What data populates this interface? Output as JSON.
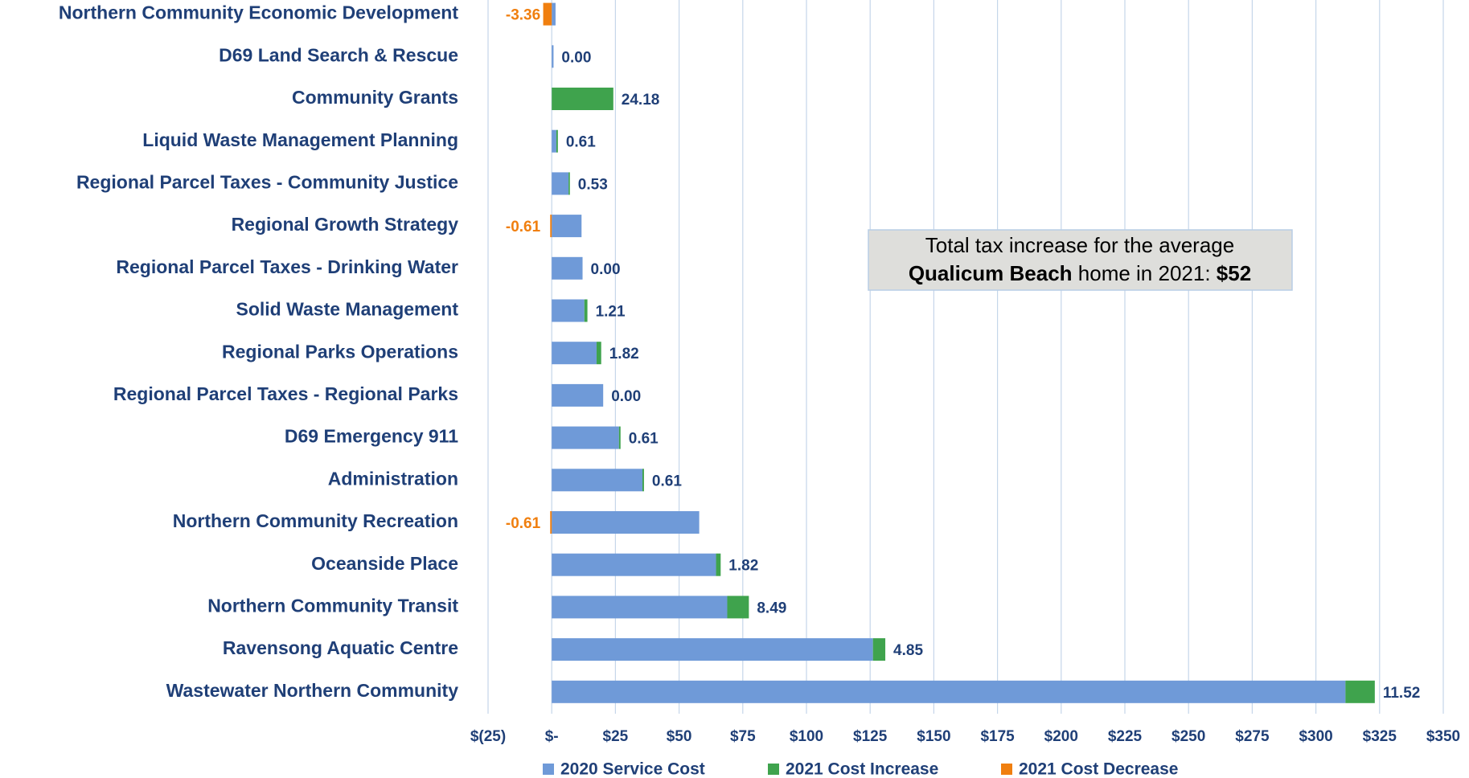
{
  "chart_data": {
    "type": "stacked-barh",
    "categories": [
      "Northern Community Economic Development",
      "D69 Land Search & Rescue",
      "Community Grants",
      "Liquid Waste Management Planning",
      "Regional Parcel Taxes - Community Justice",
      "Regional Growth Strategy",
      "Regional Parcel Taxes - Drinking Water",
      "Solid Waste Management",
      "Regional Parks Operations",
      "Regional Parcel Taxes - Regional Parks",
      "D69 Emergency 911",
      "Administration",
      "Northern Community Recreation",
      "Oceanside Place",
      "Northern Community Transit",
      "Ravensong Aquatic Centre",
      "Wastewater Northern Community"
    ],
    "series": [
      {
        "name": "2020 Service Cost",
        "color": "#6f9ad8",
        "values": [
          1.5,
          0.7,
          0,
          1.8,
          6.6,
          11.7,
          12.1,
          12.8,
          17.6,
          20.2,
          26.4,
          35.6,
          57.9,
          64.5,
          68.9,
          126.1,
          311.6
        ]
      },
      {
        "name": "2021 Cost Increase",
        "color": "#3fa34d",
        "values": [
          null,
          0,
          24.18,
          0.61,
          0.53,
          null,
          0,
          1.21,
          1.82,
          0,
          0.61,
          0.61,
          null,
          1.82,
          8.49,
          4.85,
          11.52
        ],
        "value_labels": [
          null,
          "0.00",
          "24.18",
          "0.61",
          "0.53",
          null,
          "0.00",
          "1.21",
          "1.82",
          "0.00",
          "0.61",
          "0.61",
          null,
          "1.82",
          "8.49",
          "4.85",
          "11.52"
        ]
      },
      {
        "name": "2021 Cost Decrease",
        "color": "#f07f0f",
        "values": [
          -3.36,
          null,
          null,
          null,
          null,
          -0.61,
          null,
          null,
          null,
          null,
          null,
          null,
          -0.61,
          null,
          null,
          null,
          null
        ]
      }
    ],
    "xlim": [
      -25,
      350
    ],
    "xticks": [
      {
        "value": -25,
        "label": "$(25)"
      },
      {
        "value": 0,
        "label": "$-"
      },
      {
        "value": 25,
        "label": "$25"
      },
      {
        "value": 50,
        "label": "$50"
      },
      {
        "value": 75,
        "label": "$75"
      },
      {
        "value": 100,
        "label": "$100"
      },
      {
        "value": 125,
        "label": "$125"
      },
      {
        "value": 150,
        "label": "$150"
      },
      {
        "value": 175,
        "label": "$175"
      },
      {
        "value": 200,
        "label": "$200"
      },
      {
        "value": 225,
        "label": "$225"
      },
      {
        "value": 250,
        "label": "$250"
      },
      {
        "value": 275,
        "label": "$275"
      },
      {
        "value": 300,
        "label": "$300"
      },
      {
        "value": 325,
        "label": "$325"
      },
      {
        "value": 350,
        "label": "$350"
      }
    ],
    "grid": true,
    "legend": "bottom",
    "annotation": {
      "line1": "Total tax increase for the average",
      "line2": [
        "Qualicum Beach",
        " home in 2021: ",
        "$52"
      ]
    }
  }
}
